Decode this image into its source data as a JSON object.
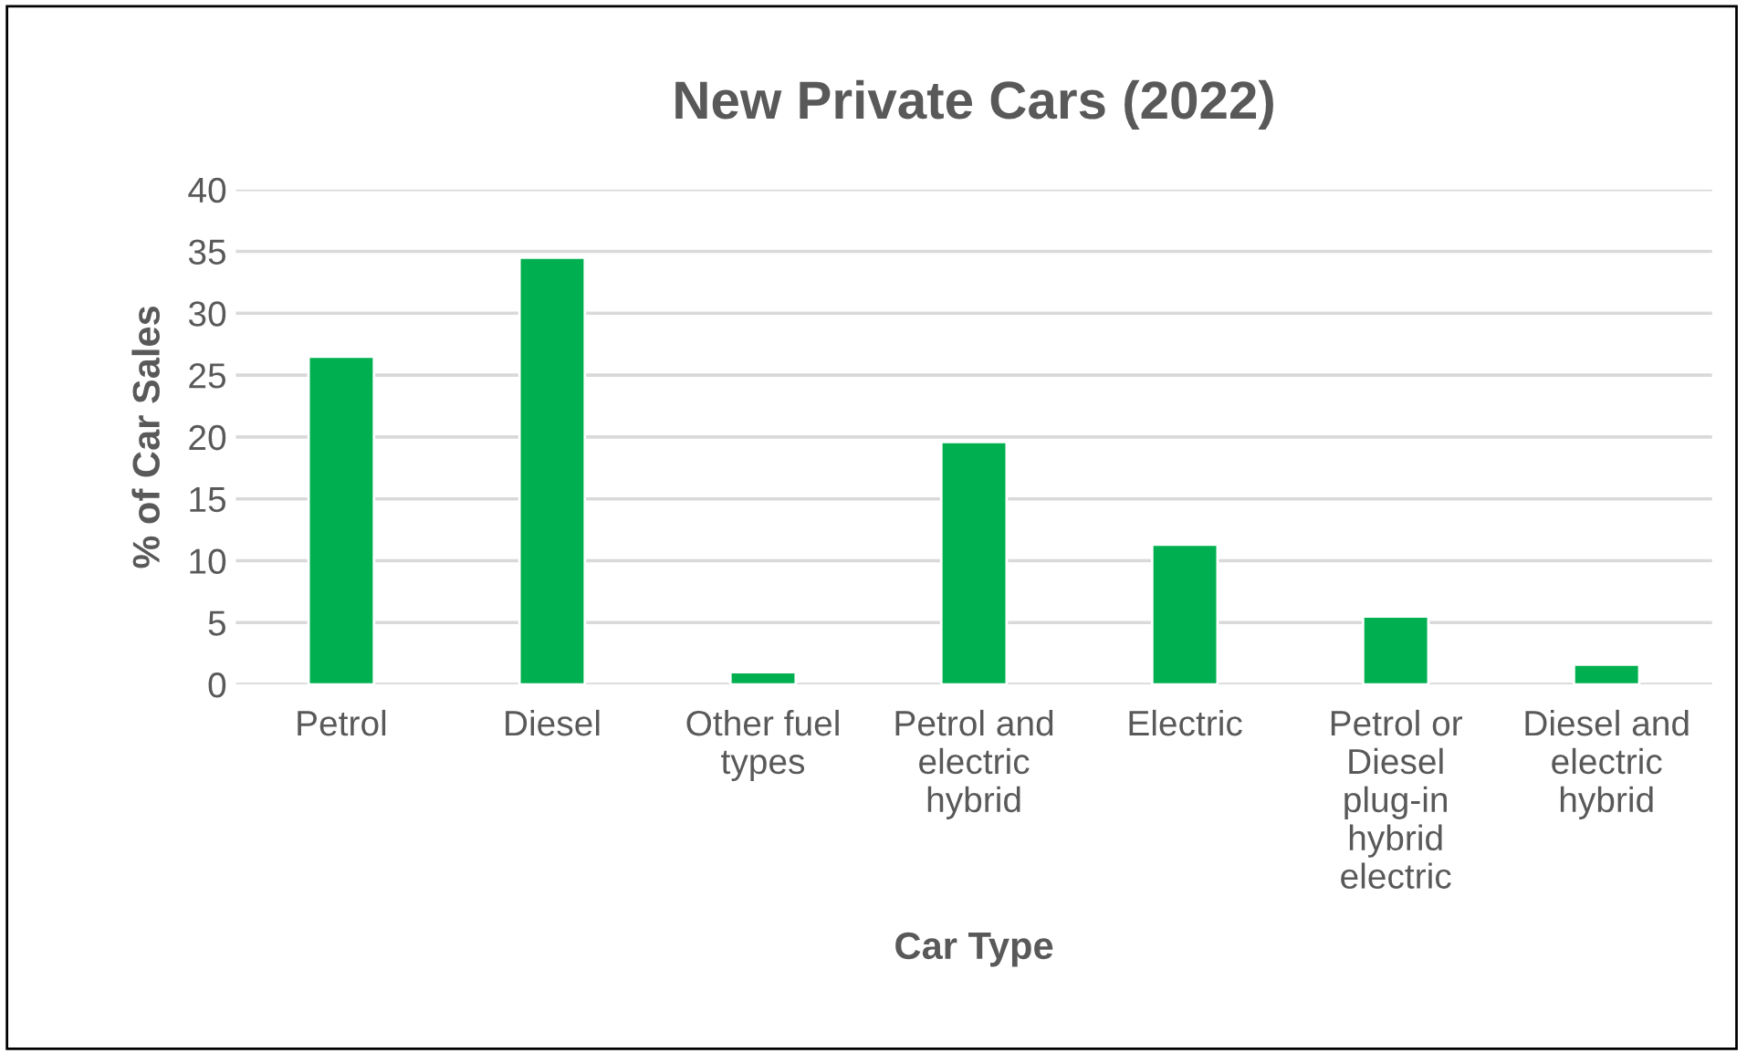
{
  "chart_data": {
    "type": "bar",
    "title": "New Private Cars (2022)",
    "xlabel": "Car Type",
    "ylabel": "% of Car Sales",
    "categories": [
      "Petrol",
      "Diesel",
      "Other fuel types",
      "Petrol and electric hybrid",
      "Electric",
      "Petrol or Diesel plug-in hybrid electric",
      "Diesel and electric hybrid"
    ],
    "values": [
      26.5,
      34.5,
      1.0,
      19.6,
      11.3,
      5.5,
      1.6
    ],
    "color": "#00b050",
    "ylim": [
      0,
      40
    ],
    "yticks": [
      0,
      5,
      10,
      15,
      20,
      25,
      30,
      35,
      40
    ],
    "grid": "y"
  }
}
